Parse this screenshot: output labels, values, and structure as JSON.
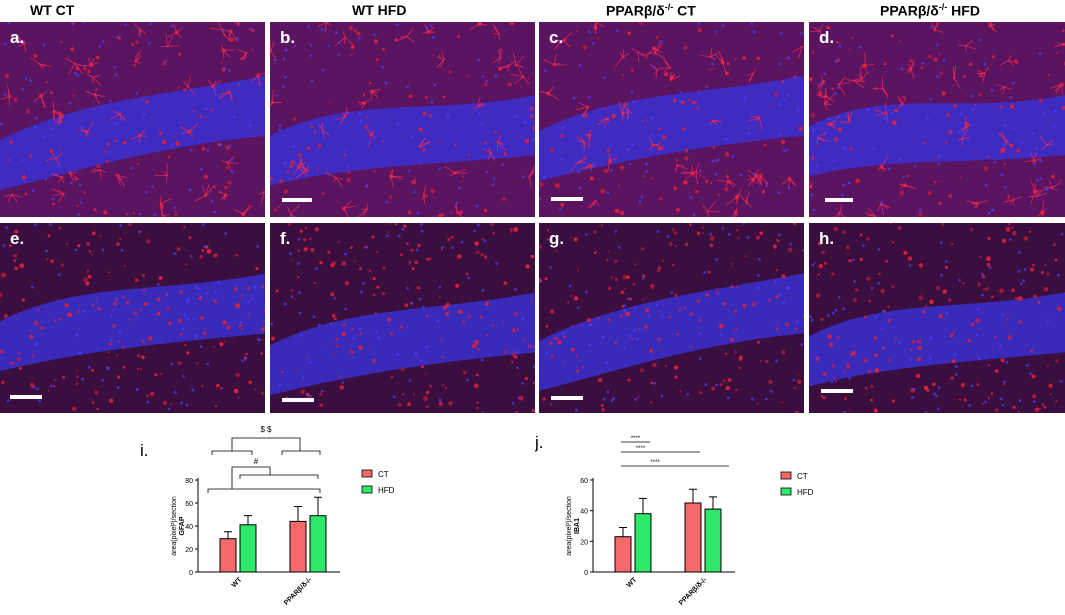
{
  "columns": [
    "WT CT",
    "WT HFD",
    "PPARβ/δ-/- CT",
    "PPARβ/δ-/- HFD"
  ],
  "panels": [
    {
      "label": "a.",
      "stain": "GFAP",
      "band": "upper"
    },
    {
      "label": "b.",
      "stain": "GFAP",
      "band": "upper"
    },
    {
      "label": "c.",
      "stain": "GFAP",
      "band": "upper"
    },
    {
      "label": "d.",
      "stain": "GFAP",
      "band": "upper"
    },
    {
      "label": "e.",
      "stain": "IBA1",
      "band": "lower"
    },
    {
      "label": "f.",
      "stain": "IBA1",
      "band": "lower"
    },
    {
      "label": "g.",
      "stain": "IBA1",
      "band": "lower"
    },
    {
      "label": "h.",
      "stain": "IBA1",
      "band": "lower"
    }
  ],
  "colors": {
    "red_signal": "#e0203a",
    "blue_nuclei": "#3b2fd0",
    "bar_ct": "#f46a6a",
    "bar_hfd": "#2ee86a"
  },
  "chart_data": [
    {
      "panel_label": "i.",
      "type": "bar",
      "ylabel": "area(pixel²)/section GFAP",
      "categories": [
        "WT",
        "PPARβ/δ-/-"
      ],
      "series": [
        {
          "name": "CT",
          "values": [
            29,
            44
          ],
          "errors": [
            6,
            13
          ]
        },
        {
          "name": "HFD",
          "values": [
            41,
            49
          ],
          "errors": [
            8,
            16
          ]
        }
      ],
      "ylim": [
        0,
        80
      ],
      "yticks": [
        0,
        20,
        40,
        60,
        80
      ],
      "legend": "right",
      "annotations": [
        "$ $",
        "#"
      ]
    },
    {
      "panel_label": "j.",
      "type": "bar",
      "ylabel": "area(pixel²)/section IBA1",
      "categories": [
        "WT",
        "PPARβ/δ-/-"
      ],
      "series": [
        {
          "name": "CT",
          "values": [
            23,
            45
          ],
          "errors": [
            6,
            9
          ]
        },
        {
          "name": "HFD",
          "values": [
            38,
            41
          ],
          "errors": [
            10,
            8
          ]
        }
      ],
      "ylim": [
        0,
        60
      ],
      "yticks": [
        0,
        20,
        40,
        60
      ],
      "legend": "right",
      "annotations": [
        "****",
        "****",
        "****"
      ]
    }
  ]
}
